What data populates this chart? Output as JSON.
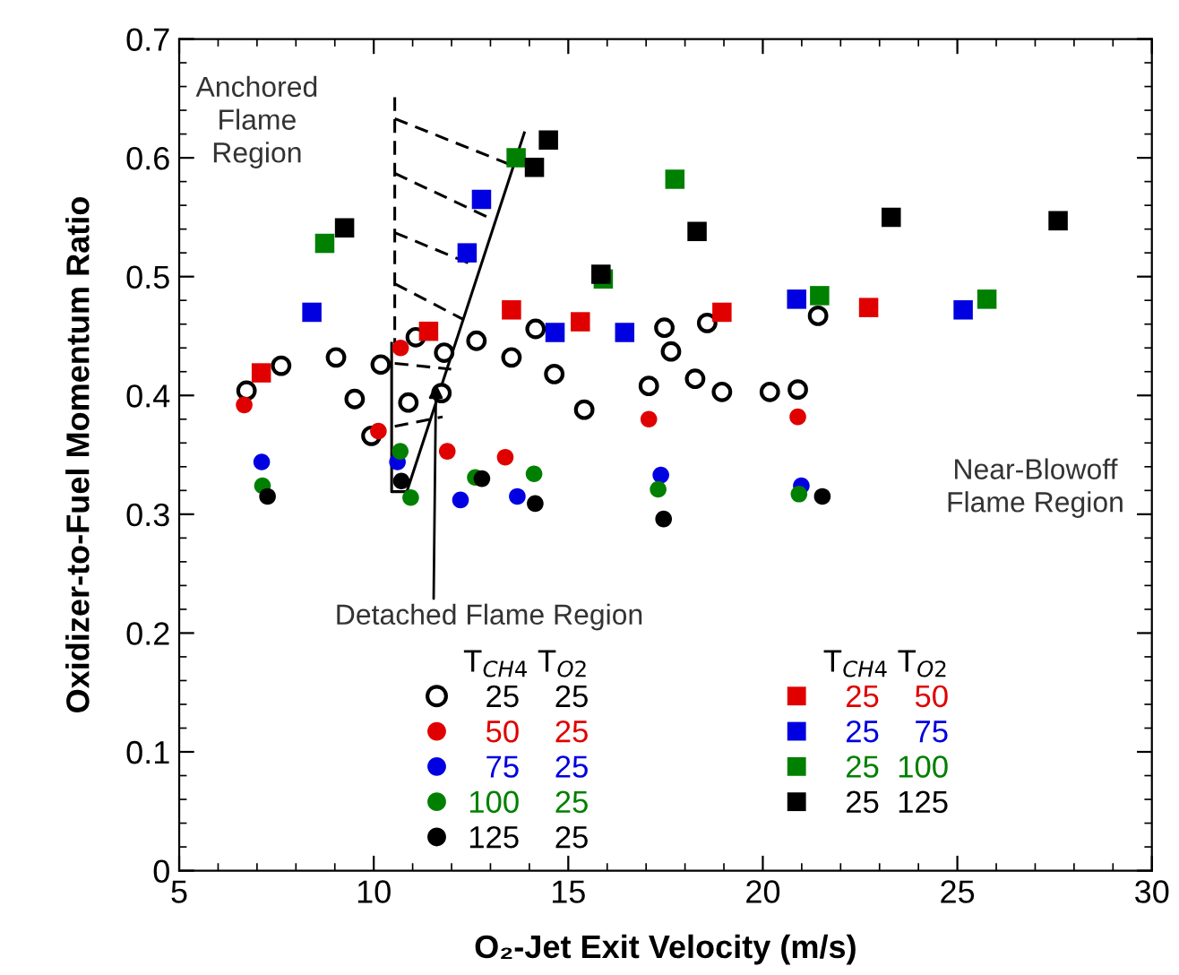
{
  "chart_data": {
    "type": "scatter",
    "xlabel": "O₂-Jet Exit Velocity (m/s)",
    "ylabel": "Oxidizer-to-Fuel Momentum Ratio",
    "xlim": [
      5,
      30
    ],
    "xticks": [
      5,
      10,
      15,
      20,
      25,
      30
    ],
    "ylim": [
      0,
      0.7
    ],
    "yticks": [
      0,
      0.1,
      0.2,
      0.3,
      0.4,
      0.5,
      0.6,
      0.7
    ],
    "grid": false,
    "legend": "bottom",
    "legend_title": "T$_{CH4}$ T$_{O2}$",
    "annotations": [
      "Anchored Flame Region",
      "Near-Blowoff Flame Region",
      {
        "text": "Detached Flame Region",
        "x": 11.6,
        "y": 0.41
      }
    ],
    "series": [
      {
        "name": "25 25",
        "marker": "circle",
        "color": "#ffffff",
        "x": [
          6.73,
          7.62,
          9.03,
          9.51,
          9.94,
          10.18,
          10.89,
          11.08,
          11.81,
          11.74,
          12.64,
          13.54,
          14.16,
          14.64,
          15.41,
          17.07,
          17.47,
          17.64,
          18.57,
          18.26,
          18.95,
          20.18,
          20.9,
          21.42
        ],
        "values": [
          0.404,
          0.425,
          0.432,
          0.397,
          0.366,
          0.426,
          0.394,
          0.449,
          0.436,
          0.402,
          0.446,
          0.432,
          0.456,
          0.418,
          0.388,
          0.408,
          0.457,
          0.437,
          0.461,
          0.414,
          0.403,
          0.403,
          0.405,
          0.467
        ]
      },
      {
        "name": "50 25",
        "marker": "circle",
        "color": "#e00000",
        "x": [
          6.67,
          10.12,
          10.69,
          11.89,
          13.38,
          17.07,
          20.9
        ],
        "values": [
          0.392,
          0.37,
          0.44,
          0.353,
          0.348,
          0.38,
          0.382
        ]
      },
      {
        "name": "75 25",
        "marker": "circle",
        "color": "#0000e0",
        "x": [
          7.12,
          10.61,
          12.23,
          13.69,
          17.38,
          20.99
        ],
        "values": [
          0.344,
          0.344,
          0.312,
          0.315,
          0.333,
          0.324
        ]
      },
      {
        "name": "100 25",
        "marker": "circle",
        "color": "#008000",
        "x": [
          7.14,
          10.68,
          10.95,
          12.61,
          14.12,
          17.31,
          20.93
        ],
        "values": [
          0.324,
          0.353,
          0.314,
          0.331,
          0.334,
          0.321,
          0.317
        ]
      },
      {
        "name": "125 25",
        "marker": "circle",
        "color": "#000000",
        "x": [
          7.27,
          10.71,
          12.78,
          14.15,
          17.45,
          21.53
        ],
        "values": [
          0.315,
          0.328,
          0.33,
          0.309,
          0.296,
          0.315
        ]
      },
      {
        "name": "25 50",
        "marker": "square",
        "color": "#e00000",
        "x": [
          7.11,
          11.41,
          13.54,
          15.31,
          18.95,
          22.72
        ],
        "values": [
          0.419,
          0.454,
          0.472,
          0.462,
          0.47,
          0.474
        ]
      },
      {
        "name": "25 75",
        "marker": "square",
        "color": "#0000e0",
        "x": [
          8.41,
          12.77,
          12.4,
          14.66,
          16.45,
          20.87,
          25.15
        ],
        "values": [
          0.47,
          0.565,
          0.52,
          0.453,
          0.453,
          0.481,
          0.472
        ]
      },
      {
        "name": "25 100",
        "marker": "square",
        "color": "#008000",
        "x": [
          8.74,
          13.66,
          15.9,
          17.74,
          21.46,
          25.76
        ],
        "values": [
          0.528,
          0.6,
          0.498,
          0.582,
          0.484,
          0.481
        ]
      },
      {
        "name": "25 125",
        "marker": "square",
        "color": "#000000",
        "x": [
          9.25,
          14.49,
          14.13,
          15.84,
          18.31,
          23.3,
          27.59
        ],
        "values": [
          0.541,
          0.615,
          0.592,
          0.502,
          0.538,
          0.55,
          0.547
        ]
      },
      {
        "type": "line",
        "line_style": "solid",
        "color": "#000000",
        "x": [
          10.46,
          10.46,
          10.85,
          13.87
        ],
        "values": [
          0.444,
          0.319,
          0.319,
          0.621
        ]
      },
      {
        "type": "line",
        "line_style": "dashed",
        "color": "#000000",
        "x": [
          10.54,
          10.54,
          null,
          10.54,
          13.53,
          null,
          10.54,
          13.0,
          null,
          10.54,
          12.61,
          null,
          10.54,
          12.3,
          null,
          10.54,
          11.99,
          null,
          10.54,
          11.77
        ],
        "values": [
          0.651,
          0.444,
          null,
          0.633,
          0.594,
          null,
          0.587,
          0.549,
          null,
          0.537,
          0.509,
          null,
          0.494,
          0.464,
          null,
          0.427,
          0.422,
          null,
          0.374,
          0.382
        ]
      }
    ]
  }
}
